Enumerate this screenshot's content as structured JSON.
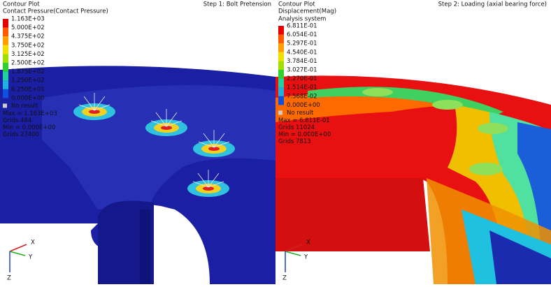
{
  "panels": [
    {
      "header": {
        "title": "Contour Plot",
        "quantity": "Contact Pressure(Contact Pressure)",
        "step": "Step 1: Bolt Pretension"
      },
      "legend": {
        "labels": [
          "1.163E+03",
          "5.000E+02",
          "4.375E+02",
          "3.750E+02",
          "3.125E+02",
          "2.500E+02",
          "1.875E+02",
          "1.250E+02",
          "6.250E+01",
          "0.000E+00"
        ],
        "no_result": "No result"
      },
      "stats": [
        "Max = 1.163E+03",
        "Grids 484",
        "Min = 0.000E+00",
        "Grids 27400"
      ],
      "triad": {
        "x": "X",
        "y": "Y",
        "z": "Z"
      }
    },
    {
      "header": {
        "title": "Contour Plot",
        "quantity": "Displacement(Mag)",
        "system": "Analysis system",
        "step": "Step 2: Loading (axial bearing force)"
      },
      "legend": {
        "labels": [
          "6.811E-01",
          "6.054E-01",
          "5.297E-01",
          "4.540E-01",
          "3.784E-01",
          "3.027E-01",
          "2.270E-01",
          "1.514E-01",
          "7.568E-02",
          "0.000E+00"
        ],
        "no_result": "No result"
      },
      "stats": [
        "Max = 6.811E-01",
        "Grids 11024",
        "Min = 0.000E+00",
        "Grids 7813"
      ],
      "triad": {
        "x": "X",
        "y": "Y",
        "z": "Z"
      }
    }
  ]
}
